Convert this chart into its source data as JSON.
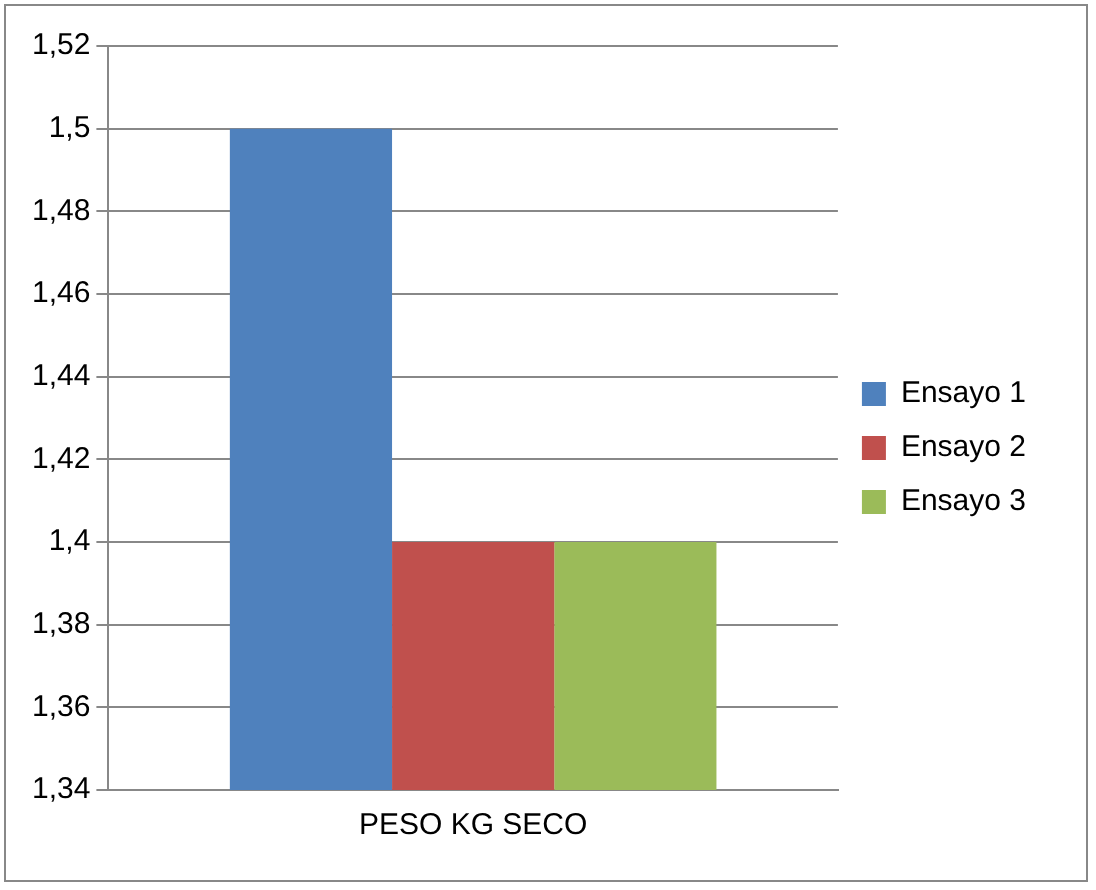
{
  "chart_data": {
    "type": "bar",
    "categories": [
      "PESO KG SECO"
    ],
    "series": [
      {
        "name": "Ensayo 1",
        "color": "#4f81bd",
        "values": [
          1.5
        ]
      },
      {
        "name": "Ensayo 2",
        "color": "#c0504d",
        "values": [
          1.4
        ]
      },
      {
        "name": "Ensayo 3",
        "color": "#9bbb59",
        "values": [
          1.4
        ]
      }
    ],
    "ylim": [
      1.34,
      1.52
    ],
    "yticks": [
      {
        "value": 1.34,
        "label": "1,34"
      },
      {
        "value": 1.36,
        "label": "1,36"
      },
      {
        "value": 1.38,
        "label": "1,38"
      },
      {
        "value": 1.4,
        "label": "1,4"
      },
      {
        "value": 1.42,
        "label": "1,42"
      },
      {
        "value": 1.44,
        "label": "1,44"
      },
      {
        "value": 1.46,
        "label": "1,46"
      },
      {
        "value": 1.48,
        "label": "1,48"
      },
      {
        "value": 1.5,
        "label": "1,5"
      },
      {
        "value": 1.52,
        "label": "1,52"
      }
    ],
    "grid": "y",
    "legend": "right"
  }
}
